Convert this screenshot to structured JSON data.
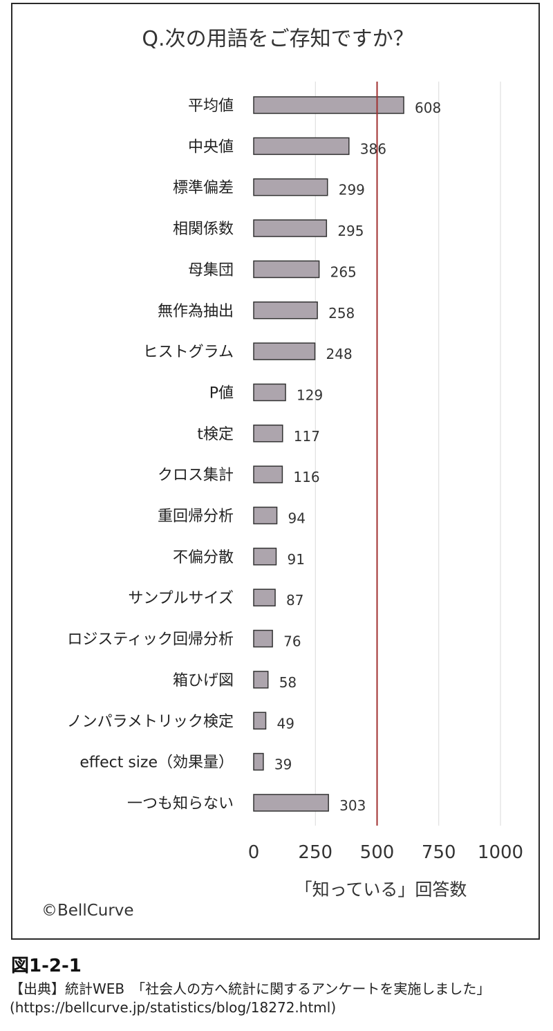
{
  "chart_data": {
    "type": "bar",
    "orientation": "horizontal",
    "title": "Q.次の用語をご存知ですか？",
    "xlabel": "「知っている」回答数",
    "ylabel": "",
    "xlim": [
      0,
      1000
    ],
    "xticks": [
      "0",
      "250",
      "500",
      "750",
      "1000"
    ],
    "grid": true,
    "reference_line": 500,
    "reference_line_color": "#a03030",
    "bar_color": "#ada5ad",
    "bar_edge_color": "#333333",
    "categories": [
      "平均値",
      "中央値",
      "標準偏差",
      "相関係数",
      "母集団",
      "無作為抽出",
      "ヒストグラム",
      "P値",
      "t検定",
      "クロス集計",
      "重回帰分析",
      "不偏分散",
      "サンプルサイズ",
      "ロジスティック回帰分析",
      "箱ひげ図",
      "ノンパラメトリック検定",
      "effect size（効果量）",
      "一つも知らない"
    ],
    "values": [
      608,
      386,
      299,
      295,
      265,
      258,
      248,
      129,
      117,
      116,
      94,
      91,
      87,
      76,
      58,
      49,
      39,
      303
    ],
    "value_labels": [
      "608",
      "386",
      "299",
      "295",
      "265",
      "258",
      "248",
      "129",
      "117",
      "116",
      "94",
      "91",
      "87",
      "76",
      "58",
      "49",
      "39",
      "303"
    ]
  },
  "copyright": "©BellCurve",
  "figure_number": "図1-2-1",
  "source_line": "【出典】統計WEB　「社会人の方へ統計に関するアンケートを実施しました」",
  "source_url": "(https://bellcurve.jp/statistics/blog/18272.html)"
}
